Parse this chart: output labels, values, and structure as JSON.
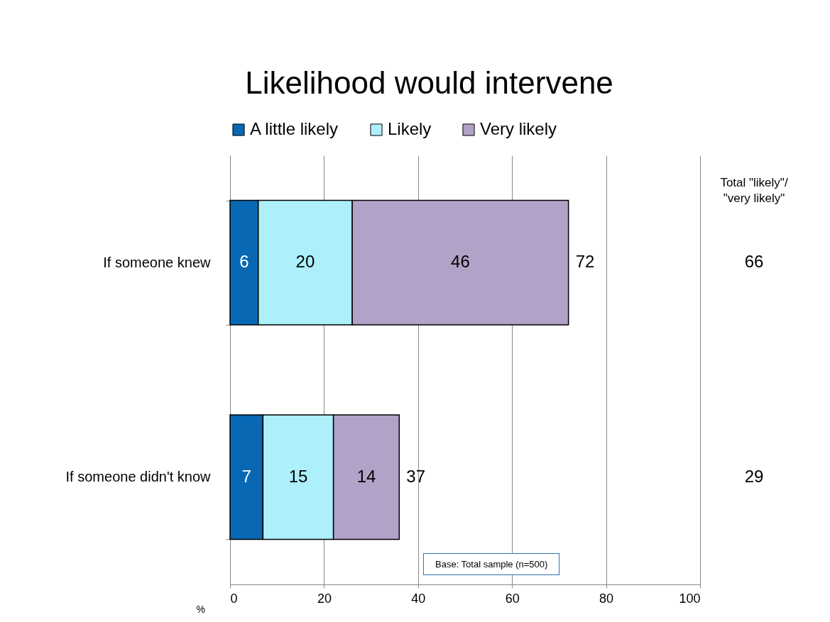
{
  "chart_data": {
    "type": "bar",
    "orientation": "horizontal",
    "stacked": true,
    "title": "Likelihood would intervene",
    "xlabel": "%",
    "categories": [
      "If someone knew",
      "If someone didn't know"
    ],
    "series": [
      {
        "name": "A little likely",
        "color": "#0868b3",
        "values": [
          6,
          7
        ]
      },
      {
        "name": "Likely",
        "color": "#adeffa",
        "values": [
          20,
          15
        ]
      },
      {
        "name": "Very likely",
        "color": "#b2a2c7",
        "values": [
          46,
          14
        ]
      }
    ],
    "totals": [
      "72",
      "37"
    ],
    "data_labels": true,
    "xlim": [
      0,
      100
    ],
    "xticks": [
      0,
      20,
      40,
      60,
      80,
      100
    ],
    "grid": "x",
    "legend": "top",
    "annotations": [
      "Total \"likely\"/\n\"very likely\"",
      "66",
      "29",
      "Base:  Total sample (n=500)"
    ]
  }
}
